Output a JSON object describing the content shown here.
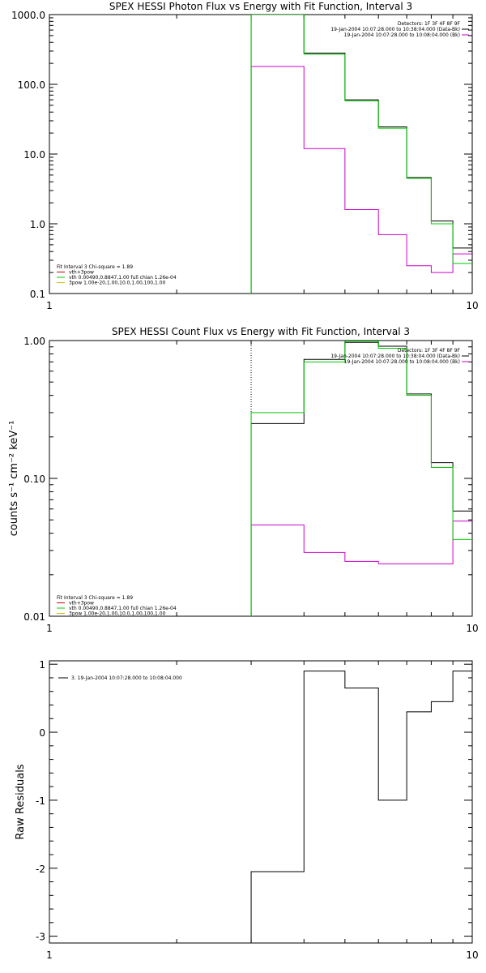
{
  "colors": {
    "black": "#000000",
    "green": "#00cc00",
    "magenta": "#cc00cc",
    "yellow": "#d8c000",
    "red": "#cc0000",
    "background": "#ffffff"
  },
  "chart_data": [
    {
      "type": "line",
      "title": "SPEX HESSI Photon Flux vs Energy with Fit Function, Interval 3",
      "xlabel": "",
      "ylabel": "",
      "xscale": "log",
      "yscale": "log",
      "xlim": [
        1,
        10
      ],
      "ylim": [
        0.1,
        1000
      ],
      "xtick_labels": [
        "1",
        "10"
      ],
      "ytick_labels": [
        "0.1",
        "1.0",
        "10.0",
        "100.0",
        "1000.0"
      ],
      "ytick_values": [
        0.1,
        1,
        10,
        100,
        1000
      ],
      "dotted_line_x": 3,
      "bin_edges": [
        3,
        4,
        5,
        6,
        7,
        8,
        9,
        10
      ],
      "series": [
        {
          "name": "",
          "role": "data",
          "color": "black",
          "values": [
            1000,
            280,
            60,
            24.5,
            4.6,
            1.1,
            0.45
          ]
        },
        {
          "name": "",
          "role": "model",
          "color": "green",
          "values": [
            1000,
            270,
            58,
            23.5,
            4.5,
            1.0,
            0.27
          ]
        },
        {
          "name": "",
          "role": "background",
          "color": "magenta",
          "values": [
            180,
            12,
            1.6,
            0.7,
            0.25,
            0.2,
            0.37
          ]
        }
      ],
      "legend_top": [
        "Detectors: 1F 3F 4F 8F 9F",
        "19-Jan-2004 10:07:28.000 to 10:38:04.000 (Data-Bk)",
        "19-Jan-2004 10:07:28.000 to 10:08:04.000 (Bk)"
      ],
      "legend_top_colors": [
        "none",
        "black",
        "magenta"
      ],
      "legend_bottom": [
        "Fit Interval 3   Chi-square = 1.89",
        "vth+3pow",
        "vth 0.00490,0.8847,1.00  full chian 1.26e-04",
        "3pow 1.00e-20,1.00,10.0,1.00,100,1.00"
      ],
      "legend_bottom_colors": [
        "none",
        "red",
        "green",
        "yellow"
      ]
    },
    {
      "type": "line",
      "title": "SPEX HESSI Count Flux vs Energy with Fit Function, Interval 3",
      "xlabel": "",
      "ylabel": "counts s⁻¹ cm⁻² keV⁻¹",
      "xscale": "log",
      "yscale": "log",
      "xlim": [
        1,
        10
      ],
      "ylim": [
        0.01,
        1
      ],
      "xtick_labels": [
        "1",
        "10"
      ],
      "ytick_labels": [
        "0.01",
        "0.10",
        "1.00"
      ],
      "ytick_values": [
        0.01,
        0.1,
        1
      ],
      "dotted_line_x": 3,
      "bin_edges": [
        3,
        4,
        5,
        6,
        7,
        8,
        9,
        10
      ],
      "series": [
        {
          "name": "",
          "role": "data",
          "color": "black",
          "values": [
            0.25,
            0.73,
            0.97,
            0.91,
            0.41,
            0.13,
            0.058
          ]
        },
        {
          "name": "",
          "role": "model",
          "color": "green",
          "values": [
            0.3,
            0.7,
            0.99,
            0.88,
            0.4,
            0.12,
            0.036
          ]
        },
        {
          "name": "",
          "role": "background",
          "color": "magenta",
          "values": [
            0.046,
            0.029,
            0.025,
            0.024,
            0.024,
            0.024,
            0.049
          ]
        }
      ],
      "legend_top": [
        "Detectors: 1F 3F 4F 8F 9F",
        "19-Jan-2004 10:07:28.000 to 10:38:04.000 (Data-Bk)",
        "19-Jan-2004 10:07:28.000 to 10:08:04.000 (Bk)"
      ],
      "legend_top_colors": [
        "none",
        "black",
        "magenta"
      ],
      "legend_bottom": [
        "Fit Interval 3   Chi-square = 1.89",
        "vth+3pow",
        "vth 0.00490,0.8847,1.00  full chian 1.26e-04",
        "3pow 1.00e-20,1.00,10.0,1.00,100,1.00"
      ],
      "legend_bottom_colors": [
        "none",
        "red",
        "green",
        "yellow"
      ]
    },
    {
      "type": "line",
      "title": "",
      "xlabel": "",
      "ylabel": "Raw Residuals",
      "xscale": "log",
      "yscale": "linear",
      "xlim": [
        1,
        10
      ],
      "ylim": [
        -3.1,
        1.05
      ],
      "xtick_labels": [
        "1",
        "10"
      ],
      "ytick_labels": [
        "-3",
        "-2",
        "-1",
        "0",
        "1"
      ],
      "ytick_values": [
        -3,
        -2,
        -1,
        0,
        1
      ],
      "bin_edges": [
        3,
        4,
        5,
        6,
        7,
        8,
        9,
        10
      ],
      "series": [
        {
          "name": "",
          "role": "residual",
          "color": "black",
          "values": [
            -2.05,
            0.9,
            0.65,
            -1.0,
            0.3,
            0.45,
            0.9
          ]
        }
      ],
      "legend_top": [
        "3. 19-Jan-2004 10:07:28.000 to 10:08:04.000"
      ],
      "legend_top_colors": [
        "black"
      ]
    }
  ]
}
